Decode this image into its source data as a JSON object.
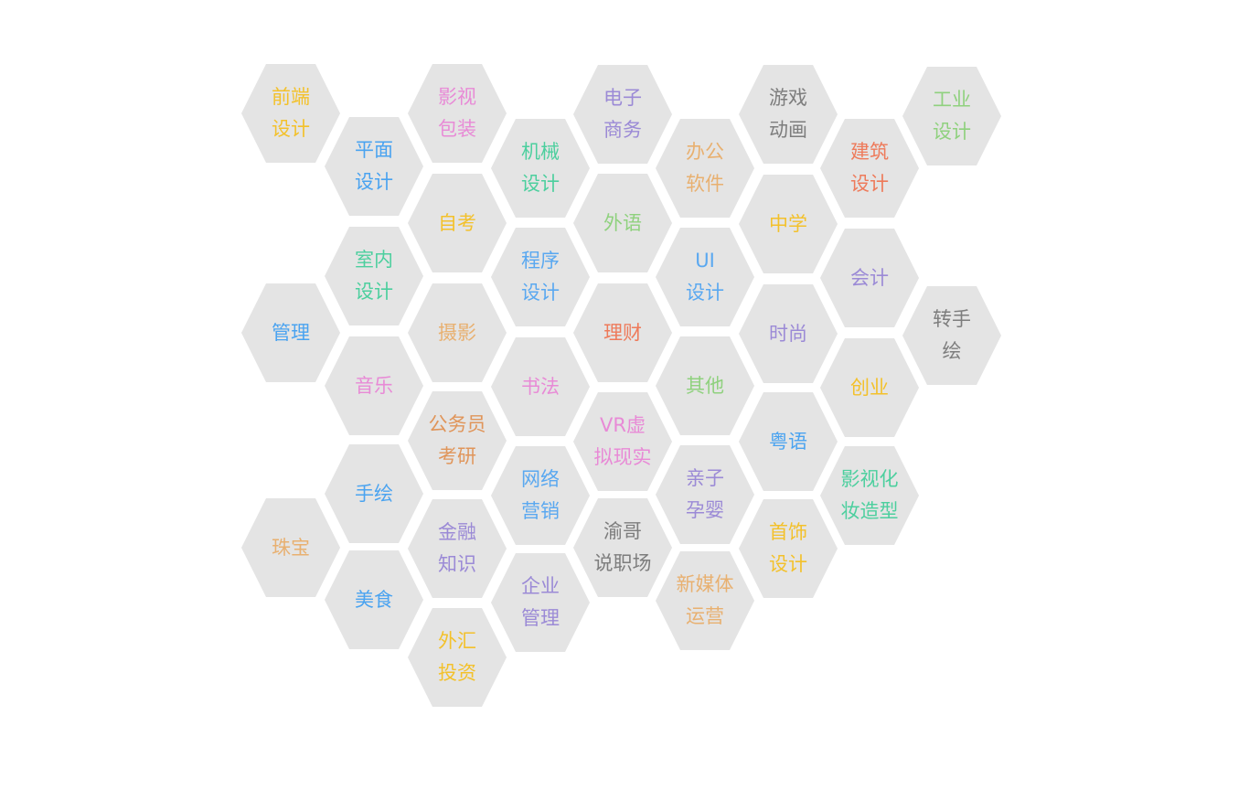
{
  "category_hexagons": [
    {
      "label": "前端\n设计",
      "color": "#f3c12b"
    },
    {
      "label": "影视\n包装",
      "color": "#e88ad6"
    },
    {
      "label": "电子\n商务",
      "color": "#9b8ad6"
    },
    {
      "label": "游戏\n动画",
      "color": "#7d7d7d"
    },
    {
      "label": "工业\n设计",
      "color": "#8fd17e"
    },
    {
      "label": "平面\n设计",
      "color": "#4aa3f0"
    },
    {
      "label": "机械\n设计",
      "color": "#4ccf9e"
    },
    {
      "label": "办公\n软件",
      "color": "#e8b070"
    },
    {
      "label": "建筑\n设计",
      "color": "#ee7a5a"
    },
    {
      "label": "自考",
      "color": "#f3c12b"
    },
    {
      "label": "外语",
      "color": "#8fd17e"
    },
    {
      "label": "中学",
      "color": "#f3c12b"
    },
    {
      "label": "室内\n设计",
      "color": "#4ccf9e"
    },
    {
      "label": "程序\n设计",
      "color": "#5aa8f0"
    },
    {
      "label": "UI\n设计",
      "color": "#5aa8f0"
    },
    {
      "label": "会计",
      "color": "#9b8ad6"
    },
    {
      "label": "管理",
      "color": "#4aa3f0"
    },
    {
      "label": "摄影",
      "color": "#e8b070"
    },
    {
      "label": "理财",
      "color": "#ee7a5a"
    },
    {
      "label": "时尚",
      "color": "#9b8ad6"
    },
    {
      "label": "转手\n绘",
      "color": "#7d7d7d"
    },
    {
      "label": "音乐",
      "color": "#e88ad6"
    },
    {
      "label": "书法",
      "color": "#e88ad6"
    },
    {
      "label": "其他",
      "color": "#8fd17e"
    },
    {
      "label": "创业",
      "color": "#f3c12b"
    },
    {
      "label": "公务员\n考研",
      "color": "#e0955a"
    },
    {
      "label": "VR虚\n拟现实",
      "color": "#e88ad6"
    },
    {
      "label": "粤语",
      "color": "#4aa3f0"
    },
    {
      "label": "手绘",
      "color": "#4aa3f0"
    },
    {
      "label": "网络\n营销",
      "color": "#5aa8f0"
    },
    {
      "label": "亲子\n孕婴",
      "color": "#9b8ad6"
    },
    {
      "label": "影视化\n妆造型",
      "color": "#4ccf9e"
    },
    {
      "label": "珠宝",
      "color": "#e8b070"
    },
    {
      "label": "金融\n知识",
      "color": "#9b8ad6"
    },
    {
      "label": "渝哥\n说职场",
      "color": "#7d7d7d"
    },
    {
      "label": "首饰\n设计",
      "color": "#f3c12b"
    },
    {
      "label": "美食",
      "color": "#4aa3f0"
    },
    {
      "label": "企业\n管理",
      "color": "#9b8ad6"
    },
    {
      "label": "新媒体\n运营",
      "color": "#e8b070"
    },
    {
      "label": "外汇\n投资",
      "color": "#f3c12b"
    }
  ]
}
